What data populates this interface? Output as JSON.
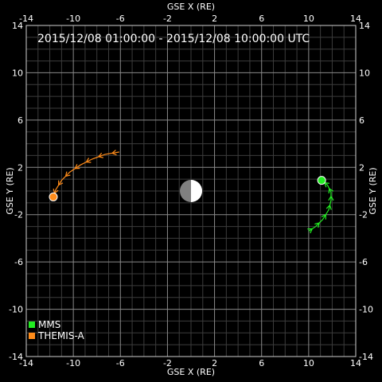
{
  "chart_data": {
    "type": "line",
    "title": "2015/12/08 01:00:00 - 2015/12/08 10:00:00 UTC",
    "xlabel": "GSE X (RE)",
    "ylabel": "GSE Y (RE)",
    "xlim": [
      -14,
      14
    ],
    "ylim": [
      -14,
      14
    ],
    "x_reversed": true,
    "grid": true,
    "x_ticks": [
      -14,
      -10,
      -6,
      -2,
      2,
      6,
      10,
      14
    ],
    "y_ticks": [
      14,
      10,
      6,
      2,
      -2,
      -6,
      -10,
      -14
    ],
    "legend_position": "bottom-left",
    "earth": {
      "x": 0,
      "y": 0
    },
    "series": [
      {
        "name": "MMS",
        "color": "#22ee22",
        "end_marker": "circle",
        "points": [
          {
            "x": 10.0,
            "y": -3.4
          },
          {
            "x": 10.6,
            "y": -3.0
          },
          {
            "x": 11.2,
            "y": -2.4
          },
          {
            "x": 11.7,
            "y": -1.6
          },
          {
            "x": 11.9,
            "y": -0.8
          },
          {
            "x": 11.9,
            "y": -0.1
          },
          {
            "x": 11.6,
            "y": 0.5
          },
          {
            "x": 11.1,
            "y": 0.9
          }
        ]
      },
      {
        "name": "THEMIS-A",
        "color": "#ff8c1a",
        "end_marker": "circle",
        "points": [
          {
            "x": -6.1,
            "y": 3.3
          },
          {
            "x": -7.3,
            "y": 3.1
          },
          {
            "x": -8.4,
            "y": 2.7
          },
          {
            "x": -9.4,
            "y": 2.2
          },
          {
            "x": -10.3,
            "y": 1.6
          },
          {
            "x": -11.0,
            "y": 0.9
          },
          {
            "x": -11.5,
            "y": 0.1
          },
          {
            "x": -11.7,
            "y": -0.5
          }
        ]
      }
    ]
  }
}
